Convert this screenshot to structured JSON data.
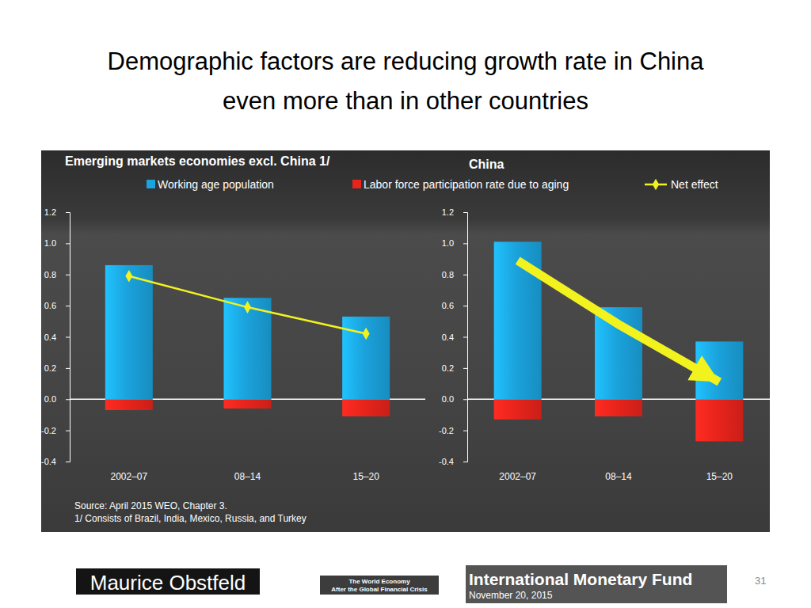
{
  "title": [
    "Demographic factors are reducing growth rate in China",
    "even more than in other countries"
  ],
  "chart_data": [
    {
      "type": "bar",
      "title": "Emerging markets economies excl. China 1/",
      "legend": "top",
      "categories": [
        "2002–07",
        "08–14",
        "15–20"
      ],
      "series": [
        {
          "name": "Working age population",
          "color": "#1ba3dd",
          "values": [
            0.86,
            0.65,
            0.53
          ]
        },
        {
          "name": "Labor force participation rate due to aging",
          "color": "#e8241c",
          "values": [
            -0.07,
            -0.06,
            -0.11
          ]
        },
        {
          "name": "Net effect",
          "type": "line",
          "color": "#f2f21f",
          "marker": "diamond",
          "values": [
            0.79,
            0.59,
            0.42
          ]
        }
      ],
      "ylim": [
        -0.4,
        1.2
      ],
      "yticks": [
        1.2,
        {
          "value": 1,
          "label": "1.0"
        },
        0.8,
        0.6,
        0.4,
        0.2,
        {
          "value": 0,
          "label": "0.0"
        },
        -0.2,
        -0.4
      ]
    },
    {
      "type": "bar",
      "title": "China",
      "categories": [
        "2002–07",
        "08–14",
        "15–20"
      ],
      "series": [
        {
          "color": "#1ba3dd",
          "values": [
            1.01,
            0.59,
            0.37
          ]
        },
        {
          "color": "#e8241c",
          "values": [
            -0.13,
            -0.11,
            -0.27
          ]
        },
        {
          "type": "line",
          "color": "#f2f21f",
          "line_style": "arrow",
          "values": [
            0.89,
            0.48,
            0.11
          ]
        }
      ],
      "ylim": [
        -0.4,
        1.2
      ],
      "yticks": [
        1.2,
        {
          "value": 1,
          "label": "1.0"
        },
        0.8,
        0.6,
        0.4,
        0.2,
        {
          "value": 0,
          "label": "0.0"
        },
        -0.2,
        -0.4
      ]
    }
  ],
  "source": [
    "Source: April 2015 WEO, Chapter 3.",
    "1/ Consists of Brazil, India, Mexico, Russia, and Turkey"
  ],
  "footer": {
    "author": "Maurice Obstfeld",
    "course": [
      "The World Economy",
      "After the Global Financial Crisis"
    ],
    "venue": "International Monetary Fund",
    "date": "November 20, 2015",
    "page": 31
  }
}
